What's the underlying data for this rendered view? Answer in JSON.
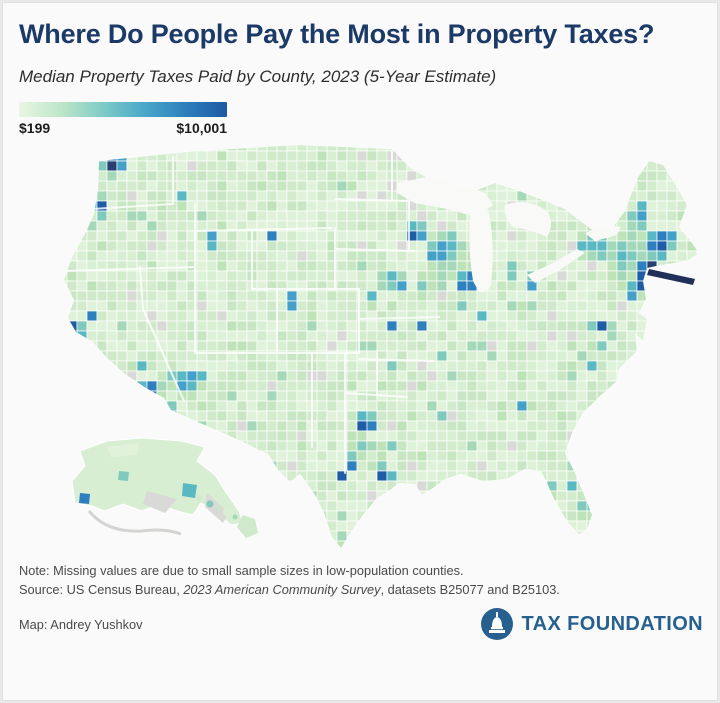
{
  "page": {
    "title": "Where Do People Pay the Most in Property Taxes?",
    "subtitle": "Median Property Taxes Paid by County, 2023 (5-Year Estimate)"
  },
  "legend": {
    "min_label": "$199",
    "max_label": "$10,001",
    "gradient_colors": [
      "#e9f6e2",
      "#bfe6c8",
      "#7fccc6",
      "#4aa8c9",
      "#2e7fbd",
      "#1c5aa3"
    ]
  },
  "map": {
    "kind": "choropleth",
    "geography": "United States counties",
    "base_color": "#d8eed3",
    "missing_color": "#d9d9d7",
    "water_color": "#f9faf8",
    "ramp": [
      "#d8eed3",
      "#bfe3b8",
      "#a5d8b8",
      "#7fcabd",
      "#5ab8c3",
      "#44a0c8",
      "#2e7fbd",
      "#1e5ca6",
      "#27406f"
    ],
    "green_variants": [
      "#d9efd3",
      "#cfe9ca",
      "#e0f2da",
      "#c8e6c3",
      "#def1d9",
      "#d3ecce"
    ]
  },
  "chart_data": {
    "type": "heatmap",
    "subtype": "choropleth-county-map",
    "title": "Where Do People Pay the Most in Property Taxes?",
    "measure": "Median property taxes paid by county",
    "period": "2023 (5-Year Estimate)",
    "scale": {
      "min_value": 199,
      "max_value": 10001,
      "min_label": "$199",
      "max_label": "$10,001",
      "low_color": "#e9f6e2",
      "high_color": "#1c5aa3"
    },
    "legend_position": "top-left",
    "missing_data_shown_as": "gray"
  },
  "notes": {
    "note": "Note: Missing values are due to small sample sizes in low-population counties.",
    "source_prefix": "Source: US Census Bureau, ",
    "source_italic": "2023 American Community Survey",
    "source_suffix": ", datasets B25077 and B25103.",
    "credit": "Map: Andrey Yushkov"
  },
  "footer": {
    "logo_text": "TAX FOUNDATION",
    "brand_color": "#27608f",
    "title_color": "#1c3a68"
  }
}
